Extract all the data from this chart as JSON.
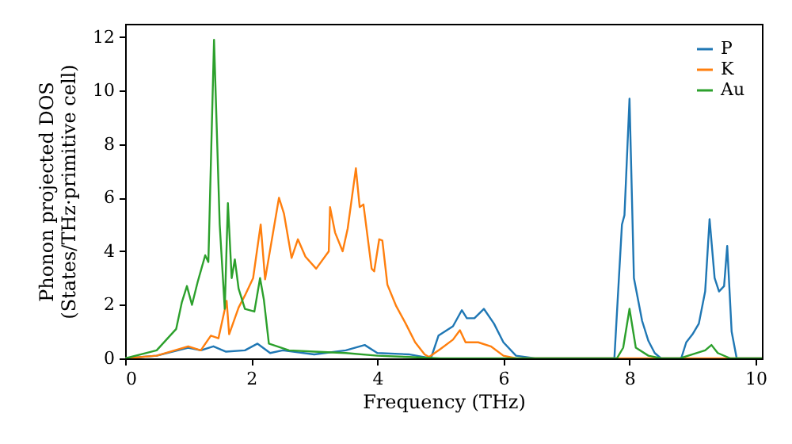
{
  "chart_data": {
    "type": "line",
    "xlabel": "Frequency (THz)",
    "ylabel": "Phonon projected DOS\n(States/THz·primitive cell)",
    "xlim": [
      0,
      10.1
    ],
    "ylim": [
      0,
      12.5
    ],
    "xticks": [
      0,
      2,
      4,
      6,
      8,
      10
    ],
    "yticks": [
      0,
      2,
      4,
      6,
      8,
      10,
      12
    ],
    "grid": false,
    "legend": "top right",
    "line_style": "solid",
    "series": [
      {
        "name": "P",
        "color": "#1f77b4",
        "x": [
          0,
          0.5,
          1.0,
          1.2,
          1.4,
          1.6,
          1.9,
          2.1,
          2.3,
          2.5,
          3.0,
          3.5,
          3.8,
          4.0,
          4.5,
          4.85,
          4.97,
          5.2,
          5.34,
          5.42,
          5.54,
          5.69,
          5.85,
          6.0,
          6.2,
          6.5,
          7.76,
          7.88,
          7.92,
          8.0,
          8.07,
          8.2,
          8.3,
          8.4,
          8.5,
          8.82,
          8.9,
          9.0,
          9.1,
          9.2,
          9.27,
          9.35,
          9.42,
          9.5,
          9.55,
          9.62,
          9.7,
          10.1
        ],
        "values": [
          0,
          0.1,
          0.4,
          0.3,
          0.45,
          0.25,
          0.3,
          0.55,
          0.2,
          0.3,
          0.15,
          0.3,
          0.5,
          0.2,
          0.15,
          0,
          0.85,
          1.2,
          1.8,
          1.5,
          1.5,
          1.85,
          1.3,
          0.6,
          0.1,
          0,
          0,
          5.0,
          5.35,
          9.7,
          3.0,
          1.4,
          0.65,
          0.2,
          0,
          0,
          0.6,
          0.9,
          1.3,
          2.5,
          5.2,
          3.0,
          2.5,
          2.7,
          4.2,
          1.0,
          0,
          0
        ]
      },
      {
        "name": "K",
        "color": "#ff7f0e",
        "x": [
          0,
          0.5,
          1.0,
          1.2,
          1.36,
          1.48,
          1.61,
          1.65,
          1.8,
          1.9,
          2.03,
          2.15,
          2.22,
          2.44,
          2.52,
          2.64,
          2.74,
          2.86,
          3.03,
          3.23,
          3.25,
          3.33,
          3.45,
          3.53,
          3.66,
          3.72,
          3.78,
          3.91,
          3.95,
          4.03,
          4.08,
          4.16,
          4.3,
          4.45,
          4.6,
          4.75,
          4.82,
          5.0,
          5.2,
          5.31,
          5.4,
          5.6,
          5.8,
          6.0,
          6.2,
          10.1
        ],
        "values": [
          0,
          0.1,
          0.45,
          0.3,
          0.85,
          0.75,
          2.15,
          0.9,
          1.9,
          2.35,
          3.0,
          5.0,
          2.95,
          6.0,
          5.4,
          3.75,
          4.45,
          3.8,
          3.35,
          4.0,
          5.65,
          4.7,
          4.0,
          4.85,
          7.1,
          5.65,
          5.75,
          3.35,
          3.25,
          4.45,
          4.4,
          2.75,
          1.95,
          1.3,
          0.6,
          0.15,
          0.05,
          0.35,
          0.7,
          1.05,
          0.6,
          0.6,
          0.45,
          0.1,
          0,
          0
        ]
      },
      {
        "name": "Au",
        "color": "#2ca02c",
        "x": [
          0,
          0.5,
          0.81,
          0.9,
          0.98,
          1.06,
          1.15,
          1.27,
          1.32,
          1.41,
          1.5,
          1.58,
          1.63,
          1.69,
          1.74,
          1.8,
          1.9,
          2.05,
          2.14,
          2.2,
          2.28,
          2.6,
          3.0,
          3.5,
          4.0,
          4.5,
          5.0,
          7.8,
          7.9,
          8.0,
          8.1,
          8.3,
          8.5,
          8.8,
          9.0,
          9.2,
          9.3,
          9.4,
          9.6,
          10.1
        ],
        "values": [
          0,
          0.3,
          1.1,
          2.1,
          2.7,
          2.0,
          2.85,
          3.85,
          3.6,
          11.9,
          5.0,
          1.85,
          5.8,
          3.0,
          3.7,
          2.6,
          1.85,
          1.75,
          3.0,
          2.2,
          0.55,
          0.3,
          0.25,
          0.2,
          0.1,
          0.05,
          0,
          0,
          0.4,
          1.85,
          0.4,
          0.1,
          0,
          0,
          0.15,
          0.3,
          0.5,
          0.2,
          0,
          0
        ]
      }
    ]
  }
}
